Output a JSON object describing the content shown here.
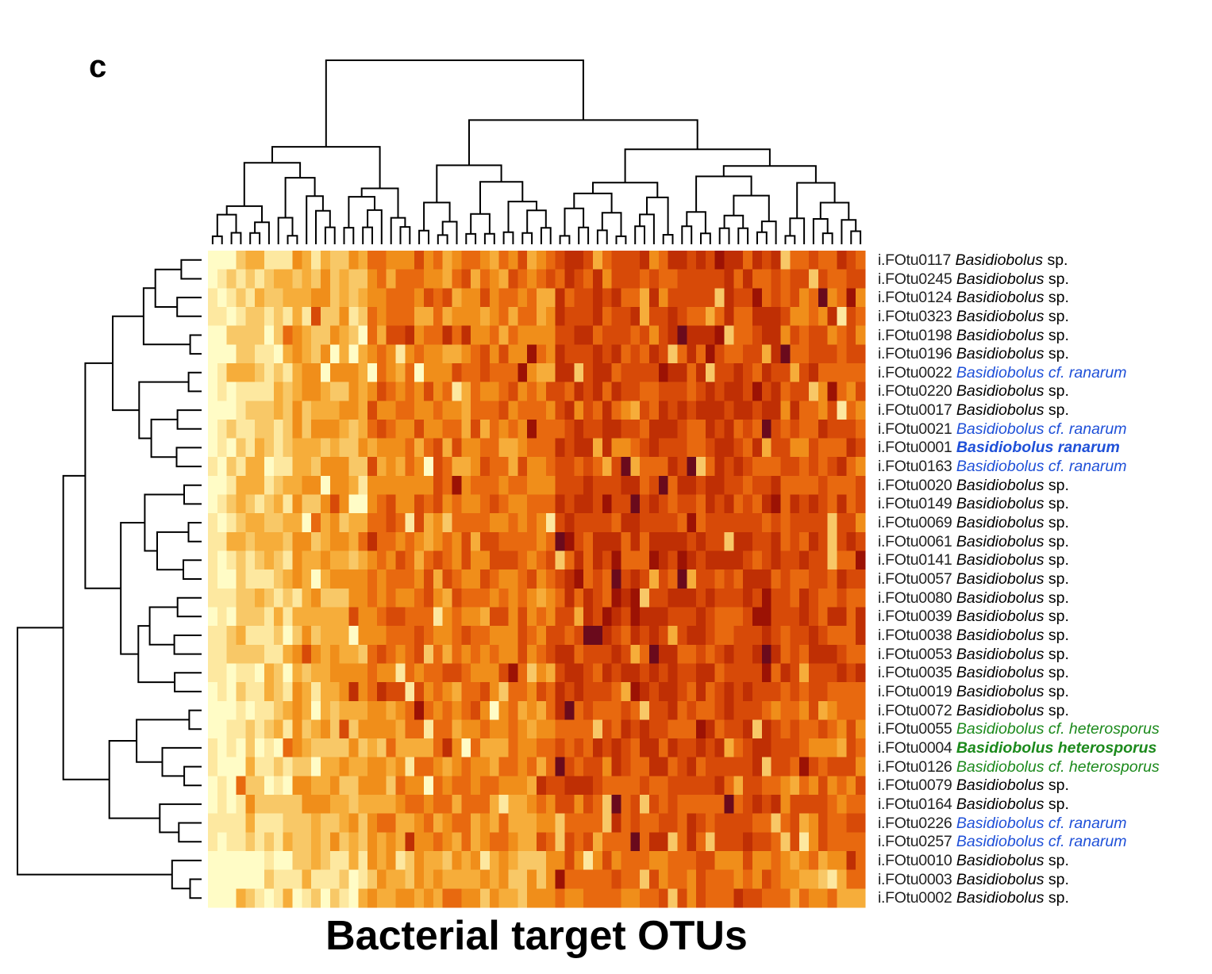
{
  "panel_label": "c",
  "chart_data": {
    "type": "heatmap",
    "xlabel": "Bacterial target OTUs",
    "n_columns": 70,
    "color_scale": [
      "#fffcc6",
      "#fde8a0",
      "#f8c867",
      "#f6ad3a",
      "#f08e1a",
      "#e8690f",
      "#d74a08",
      "#bf2f04",
      "#9c1204",
      "#6a0a1c"
    ],
    "label_colors": {
      "default": "#000000",
      "ranarum": "#1f50d8",
      "heterosporus": "#1c8a1c"
    },
    "rows": [
      {
        "otu": "i.FOtu0117",
        "genus": "Basidiobolus",
        "epithet": "sp.",
        "group": "default",
        "bold": false
      },
      {
        "otu": "i.FOtu0245",
        "genus": "Basidiobolus",
        "epithet": "sp.",
        "group": "default",
        "bold": false
      },
      {
        "otu": "i.FOtu0124",
        "genus": "Basidiobolus",
        "epithet": "sp.",
        "group": "default",
        "bold": false
      },
      {
        "otu": "i.FOtu0323",
        "genus": "Basidiobolus",
        "epithet": "sp.",
        "group": "default",
        "bold": false
      },
      {
        "otu": "i.FOtu0198",
        "genus": "Basidiobolus",
        "epithet": "sp.",
        "group": "default",
        "bold": false
      },
      {
        "otu": "i.FOtu0196",
        "genus": "Basidiobolus",
        "epithet": "sp.",
        "group": "default",
        "bold": false
      },
      {
        "otu": "i.FOtu0022",
        "genus": "Basidiobolus cf. ranarum",
        "epithet": "",
        "group": "ranarum",
        "bold": false
      },
      {
        "otu": "i.FOtu0220",
        "genus": "Basidiobolus",
        "epithet": "sp.",
        "group": "default",
        "bold": false
      },
      {
        "otu": "i.FOtu0017",
        "genus": "Basidiobolus",
        "epithet": "sp.",
        "group": "default",
        "bold": false
      },
      {
        "otu": "i.FOtu0021",
        "genus": "Basidiobolus cf. ranarum",
        "epithet": "",
        "group": "ranarum",
        "bold": false
      },
      {
        "otu": "i.FOtu0001",
        "genus": "Basidiobolus ranarum",
        "epithet": "",
        "group": "ranarum",
        "bold": true
      },
      {
        "otu": "i.FOtu0163",
        "genus": "Basidiobolus cf. ranarum",
        "epithet": "",
        "group": "ranarum",
        "bold": false
      },
      {
        "otu": "i.FOtu0020",
        "genus": "Basidiobolus",
        "epithet": "sp.",
        "group": "default",
        "bold": false
      },
      {
        "otu": "i.FOtu0149",
        "genus": "Basidiobolus",
        "epithet": "sp.",
        "group": "default",
        "bold": false
      },
      {
        "otu": "i.FOtu0069",
        "genus": "Basidiobolus",
        "epithet": "sp.",
        "group": "default",
        "bold": false
      },
      {
        "otu": "i.FOtu0061",
        "genus": "Basidiobolus",
        "epithet": "sp.",
        "group": "default",
        "bold": false
      },
      {
        "otu": "i.FOtu0141",
        "genus": "Basidiobolus",
        "epithet": "sp.",
        "group": "default",
        "bold": false
      },
      {
        "otu": "i.FOtu0057",
        "genus": "Basidiobolus",
        "epithet": "sp.",
        "group": "default",
        "bold": false
      },
      {
        "otu": "i.FOtu0080",
        "genus": "Basidiobolus",
        "epithet": "sp.",
        "group": "default",
        "bold": false
      },
      {
        "otu": "i.FOtu0039",
        "genus": "Basidiobolus",
        "epithet": "sp.",
        "group": "default",
        "bold": false
      },
      {
        "otu": "i.FOtu0038",
        "genus": "Basidiobolus",
        "epithet": "sp.",
        "group": "default",
        "bold": false
      },
      {
        "otu": "i.FOtu0053",
        "genus": "Basidiobolus",
        "epithet": "sp.",
        "group": "default",
        "bold": false
      },
      {
        "otu": "i.FOtu0035",
        "genus": "Basidiobolus",
        "epithet": "sp.",
        "group": "default",
        "bold": false
      },
      {
        "otu": "i.FOtu0019",
        "genus": "Basidiobolus",
        "epithet": "sp.",
        "group": "default",
        "bold": false
      },
      {
        "otu": "i.FOtu0072",
        "genus": "Basidiobolus",
        "epithet": "sp.",
        "group": "default",
        "bold": false
      },
      {
        "otu": "i.FOtu0055",
        "genus": "Basidiobolus cf. heterosporus",
        "epithet": "",
        "group": "heterosporus",
        "bold": false
      },
      {
        "otu": "i.FOtu0004",
        "genus": "Basidiobolus heterosporus",
        "epithet": "",
        "group": "heterosporus",
        "bold": true
      },
      {
        "otu": "i.FOtu0126",
        "genus": "Basidiobolus cf. heterosporus",
        "epithet": "",
        "group": "heterosporus",
        "bold": false
      },
      {
        "otu": "i.FOtu0079",
        "genus": "Basidiobolus",
        "epithet": "sp.",
        "group": "default",
        "bold": false
      },
      {
        "otu": "i.FOtu0164",
        "genus": "Basidiobolus",
        "epithet": "sp.",
        "group": "default",
        "bold": false
      },
      {
        "otu": "i.FOtu0226",
        "genus": "Basidiobolus cf. ranarum",
        "epithet": "",
        "group": "ranarum",
        "bold": false
      },
      {
        "otu": "i.FOtu0257",
        "genus": "Basidiobolus cf. ranarum",
        "epithet": "",
        "group": "ranarum",
        "bold": false
      },
      {
        "otu": "i.FOtu0010",
        "genus": "Basidiobolus",
        "epithet": "sp.",
        "group": "default",
        "bold": false
      },
      {
        "otu": "i.FOtu0003",
        "genus": "Basidiobolus",
        "epithet": "sp.",
        "group": "default",
        "bold": false
      },
      {
        "otu": "i.FOtu0002",
        "genus": "Basidiobolus",
        "epithet": "sp.",
        "group": "default",
        "bold": false
      }
    ]
  }
}
